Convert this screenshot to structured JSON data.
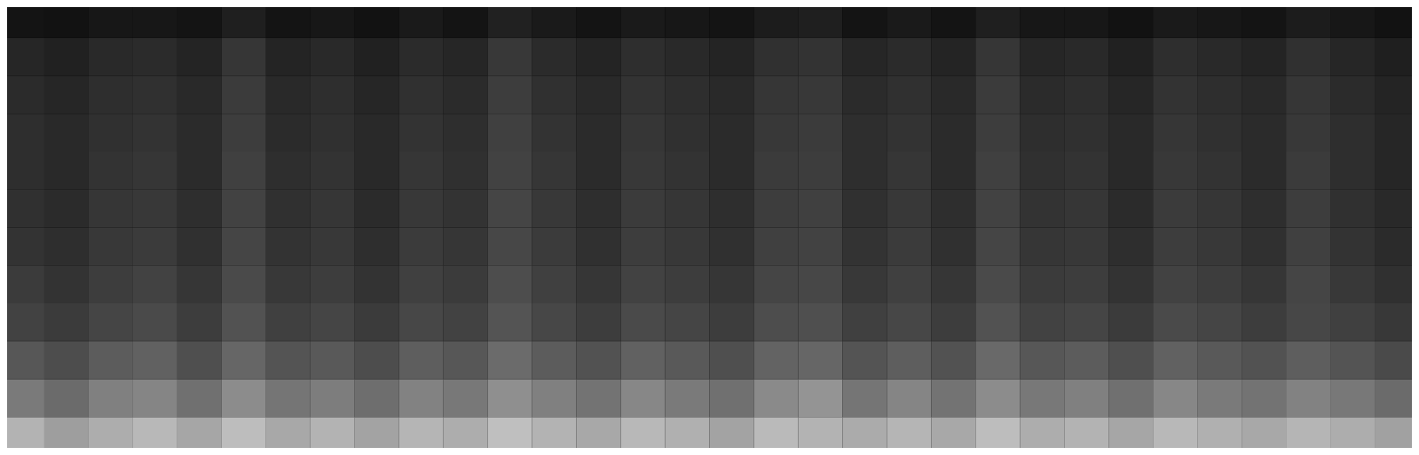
{
  "chart_data": {
    "type": "heatmap",
    "tick_labels": false,
    "grid": false,
    "color": "#ffffff",
    "xlim": [
      0,
      32
    ],
    "ylim": [
      0,
      12
    ],
    "zlim": [
      0,
      100
    ],
    "cells": [
      [
        70,
        62,
        68,
        72,
        65,
        74,
        66,
        70,
        64,
        71,
        68,
        75,
        70,
        66,
        72,
        69,
        64,
        73,
        70,
        67,
        71,
        66,
        74,
        68,
        70,
        65,
        72,
        69,
        66,
        71,
        68,
        63
      ],
      [
        48,
        42,
        50,
        52,
        44,
        55,
        46,
        49,
        43,
        51,
        47,
        56,
        50,
        45,
        53,
        48,
        44,
        54,
        58,
        46,
        52,
        45,
        55,
        47,
        50,
        44,
        53,
        48,
        45,
        51,
        47,
        42
      ],
      [
        34,
        30,
        36,
        38,
        31,
        40,
        33,
        35,
        30,
        37,
        34,
        42,
        36,
        32,
        38,
        35,
        31,
        39,
        40,
        33,
        37,
        32,
        41,
        34,
        36,
        31,
        38,
        35,
        32,
        37,
        33,
        29
      ],
      [
        26,
        23,
        27,
        29,
        24,
        32,
        25,
        27,
        23,
        28,
        26,
        33,
        28,
        24,
        29,
        27,
        24,
        30,
        31,
        25,
        28,
        24,
        32,
        26,
        27,
        23,
        29,
        27,
        24,
        28,
        25,
        22
      ],
      [
        23,
        20,
        24,
        26,
        21,
        29,
        22,
        24,
        20,
        25,
        23,
        30,
        25,
        21,
        26,
        24,
        21,
        27,
        28,
        22,
        25,
        21,
        29,
        23,
        24,
        20,
        26,
        24,
        21,
        27,
        22,
        19
      ],
      [
        20,
        18,
        22,
        23,
        19,
        27,
        20,
        22,
        18,
        23,
        21,
        28,
        23,
        19,
        24,
        22,
        19,
        25,
        26,
        20,
        23,
        19,
        27,
        21,
        22,
        18,
        24,
        22,
        19,
        25,
        20,
        17
      ],
      [
        19,
        17,
        21,
        22,
        18,
        26,
        19,
        21,
        17,
        22,
        20,
        27,
        22,
        18,
        23,
        21,
        18,
        24,
        25,
        19,
        22,
        18,
        26,
        20,
        21,
        17,
        23,
        21,
        18,
        24,
        19,
        16
      ],
      [
        18,
        16,
        20,
        21,
        17,
        25,
        18,
        20,
        16,
        21,
        19,
        26,
        21,
        17,
        22,
        20,
        17,
        23,
        24,
        18,
        21,
        17,
        25,
        19,
        20,
        16,
        22,
        20,
        17,
        23,
        18,
        15
      ],
      [
        18,
        16,
        19,
        20,
        17,
        24,
        17,
        19,
        16,
        20,
        18,
        25,
        20,
        17,
        21,
        19,
        17,
        22,
        23,
        18,
        20,
        17,
        24,
        18,
        19,
        16,
        21,
        19,
        17,
        22,
        18,
        15
      ],
      [
        17,
        15,
        18,
        19,
        16,
        23,
        16,
        18,
        15,
        19,
        17,
        24,
        19,
        16,
        20,
        18,
        16,
        21,
        22,
        17,
        19,
        16,
        23,
        17,
        18,
        15,
        20,
        18,
        16,
        21,
        17,
        14
      ],
      [
        15,
        13,
        16,
        17,
        14,
        21,
        14,
        16,
        13,
        17,
        15,
        22,
        17,
        14,
        18,
        16,
        14,
        19,
        20,
        15,
        17,
        14,
        21,
        15,
        16,
        13,
        18,
        16,
        14,
        19,
        15,
        12
      ],
      [
        8,
        7,
        9,
        9,
        8,
        12,
        8,
        9,
        7,
        10,
        8,
        13,
        10,
        8,
        10,
        9,
        8,
        11,
        12,
        8,
        10,
        8,
        12,
        9,
        9,
        7,
        10,
        9,
        8,
        11,
        9,
        7
      ]
    ]
  }
}
